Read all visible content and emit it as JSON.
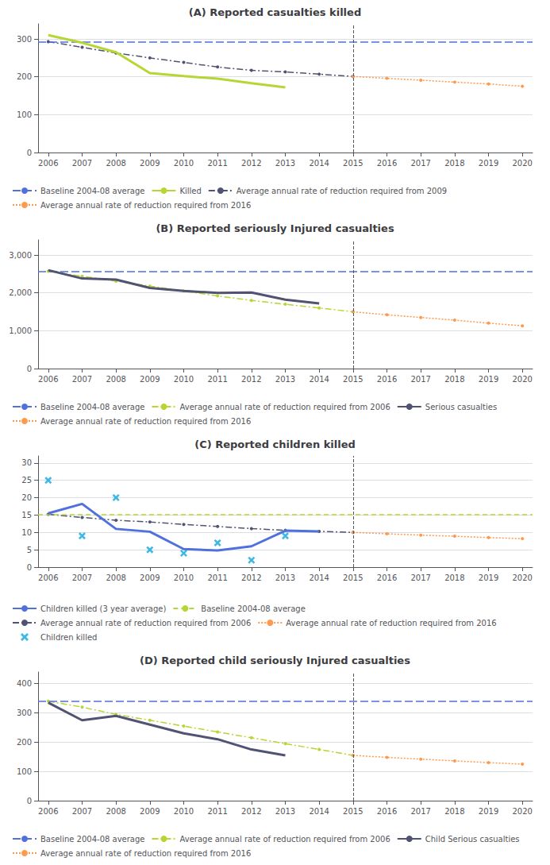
{
  "chart_data": [
    {
      "type": "line",
      "title": "(A) Reported casualties killed",
      "xlim": [
        2005.7,
        2020.3
      ],
      "xticks": [
        2006,
        2007,
        2008,
        2009,
        2010,
        2011,
        2012,
        2013,
        2014,
        2015,
        2016,
        2017,
        2018,
        2019,
        2020
      ],
      "ylim": [
        0,
        340
      ],
      "yticks": [
        0,
        100,
        200,
        300
      ],
      "grid": true,
      "vlines": [
        2015
      ],
      "series": [
        {
          "name": "Baseline 2004-08 average",
          "type": "hline",
          "values": [
            293
          ],
          "line_style": "longdash"
        },
        {
          "name": "Killed",
          "x": [
            2006,
            2007,
            2008,
            2009,
            2010,
            2011,
            2012,
            2013
          ],
          "values": [
            310,
            290,
            265,
            210,
            202,
            195,
            183,
            172
          ],
          "line_style": "solid"
        },
        {
          "name": "Average annual rate of reduction required from 2009",
          "x": [
            2006,
            2007,
            2008,
            2009,
            2010,
            2011,
            2012,
            2013,
            2014,
            2015
          ],
          "values": [
            293,
            278,
            263,
            250,
            238,
            226,
            217,
            213,
            207,
            201
          ],
          "line_style": "dashdot",
          "marker": "dot"
        },
        {
          "name": "Average annual rate of reduction required from 2016",
          "x": [
            2015,
            2016,
            2017,
            2018,
            2019,
            2020
          ],
          "values": [
            201,
            196,
            191,
            186,
            181,
            175
          ],
          "line_style": "dotted",
          "marker": "dot"
        }
      ]
    },
    {
      "type": "line",
      "title": "(B) Reported seriously Injured casualties",
      "xlim": [
        2005.7,
        2020.3
      ],
      "xticks": [
        2006,
        2007,
        2008,
        2009,
        2010,
        2011,
        2012,
        2013,
        2014,
        2015,
        2016,
        2017,
        2018,
        2019,
        2020
      ],
      "ylim": [
        0,
        3400
      ],
      "yticks": [
        0,
        {
          "value": 1000,
          "label": "1,000"
        },
        {
          "value": 2000,
          "label": "2,000"
        },
        {
          "value": 3000,
          "label": "3,000"
        }
      ],
      "grid": true,
      "vlines": [
        2015
      ],
      "series": [
        {
          "name": "Baseline 2004-08 average",
          "type": "hline",
          "values": [
            2570
          ],
          "line_style": "longdash"
        },
        {
          "name": "Average annual rate of reduction required from 2006",
          "x": [
            2006,
            2007,
            2008,
            2009,
            2010,
            2011,
            2012,
            2013,
            2014,
            2015
          ],
          "values": [
            2570,
            2440,
            2310,
            2180,
            2050,
            1920,
            1800,
            1700,
            1600,
            1500
          ],
          "line_style": "dashdot",
          "marker": "dot"
        },
        {
          "name": "Serious casualties",
          "x": [
            2006,
            2007,
            2008,
            2009,
            2010,
            2011,
            2012,
            2013,
            2014
          ],
          "values": [
            2600,
            2380,
            2350,
            2130,
            2050,
            2000,
            2010,
            1820,
            1720
          ],
          "line_style": "solid"
        },
        {
          "name": "Average annual rate of reduction required from 2016",
          "x": [
            2015,
            2016,
            2017,
            2018,
            2019,
            2020
          ],
          "values": [
            1500,
            1420,
            1350,
            1280,
            1200,
            1130
          ],
          "line_style": "dotted",
          "marker": "dot"
        }
      ]
    },
    {
      "type": "line",
      "title": "(C) Reported children killed",
      "xlim": [
        2005.7,
        2020.3
      ],
      "xticks": [
        2006,
        2007,
        2008,
        2009,
        2010,
        2011,
        2012,
        2013,
        2014,
        2015,
        2016,
        2017,
        2018,
        2019,
        2020
      ],
      "ylim": [
        0,
        32
      ],
      "yticks": [
        0,
        5,
        10,
        15,
        20,
        25,
        30
      ],
      "grid": true,
      "vlines": [
        2015
      ],
      "series": [
        {
          "name": "Children killed (3 year average)",
          "x": [
            2006,
            2007,
            2008,
            2009,
            2010,
            2011,
            2012,
            2013,
            2014
          ],
          "values": [
            15.5,
            18.2,
            11.0,
            10.2,
            5.2,
            4.8,
            6.0,
            10.5,
            10.3
          ],
          "line_style": "solid"
        },
        {
          "name": "Baseline 2004-08 average",
          "type": "hline",
          "values": [
            15.2
          ],
          "line_style": "dashed"
        },
        {
          "name": "Average annual rate of reduction required from 2006",
          "x": [
            2006,
            2007,
            2008,
            2009,
            2010,
            2011,
            2012,
            2013,
            2014,
            2015
          ],
          "values": [
            15.2,
            14.3,
            13.5,
            13.0,
            12.3,
            11.7,
            11.1,
            10.6,
            10.3,
            10.0
          ],
          "line_style": "dashdot",
          "marker": "dot"
        },
        {
          "name": "Average annual rate of reduction required from 2016",
          "x": [
            2015,
            2016,
            2017,
            2018,
            2019,
            2020
          ],
          "values": [
            10.0,
            9.6,
            9.2,
            8.9,
            8.5,
            8.2
          ],
          "line_style": "dotted",
          "marker": "dot"
        },
        {
          "name": "Children killed",
          "type": "scatter",
          "x": [
            2006,
            2007,
            2008,
            2009,
            2010,
            2011,
            2012,
            2013
          ],
          "values": [
            25,
            9,
            20,
            5,
            4,
            7,
            2,
            9
          ],
          "marker": "x"
        }
      ]
    },
    {
      "type": "line",
      "title": "(D) Reported child seriously Injured casualties",
      "xlim": [
        2005.7,
        2020.3
      ],
      "xticks": [
        2006,
        2007,
        2008,
        2009,
        2010,
        2011,
        2012,
        2013,
        2014,
        2015,
        2016,
        2017,
        2018,
        2019,
        2020
      ],
      "ylim": [
        0,
        440
      ],
      "yticks": [
        0,
        100,
        200,
        300,
        400
      ],
      "grid": true,
      "vlines": [
        2015
      ],
      "series": [
        {
          "name": "Baseline 2004-08 average",
          "type": "hline",
          "values": [
            340
          ],
          "line_style": "longdash"
        },
        {
          "name": "Average annual rate of reduction required from 2006",
          "x": [
            2006,
            2007,
            2008,
            2009,
            2010,
            2011,
            2012,
            2013,
            2014,
            2015
          ],
          "values": [
            340,
            320,
            295,
            275,
            255,
            235,
            215,
            195,
            175,
            155
          ],
          "line_style": "dashdot",
          "marker": "dot"
        },
        {
          "name": "Child Serious casualties",
          "x": [
            2006,
            2007,
            2008,
            2009,
            2010,
            2011,
            2012,
            2013
          ],
          "values": [
            335,
            275,
            290,
            260,
            230,
            210,
            175,
            155
          ],
          "line_style": "solid"
        },
        {
          "name": "Average annual rate of reduction required from 2016",
          "x": [
            2015,
            2016,
            2017,
            2018,
            2019,
            2020
          ],
          "values": [
            155,
            148,
            142,
            136,
            130,
            125
          ],
          "line_style": "dotted",
          "marker": "dot"
        }
      ]
    }
  ]
}
